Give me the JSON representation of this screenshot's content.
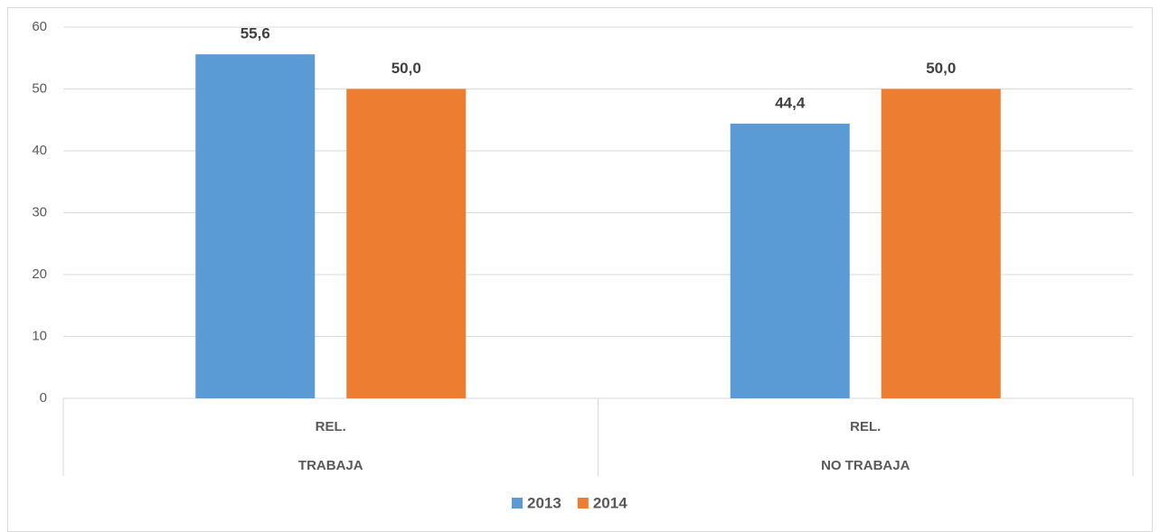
{
  "chart_data": {
    "type": "bar",
    "categories": [
      "TRABAJA",
      "NO TRABAJA"
    ],
    "subcategories": [
      "REL.",
      "REL."
    ],
    "series": [
      {
        "name": "2013",
        "color": "#5b9bd5",
        "values": [
          55.6,
          44.4
        ],
        "value_labels": [
          "55,6",
          "44,4"
        ]
      },
      {
        "name": "2014",
        "color": "#ed7d31",
        "values": [
          50.0,
          50.0
        ],
        "value_labels": [
          "50,0",
          "50,0"
        ]
      }
    ],
    "ylim": [
      0,
      60
    ],
    "yticks": [
      0,
      10,
      20,
      30,
      40,
      50,
      60
    ],
    "grid": true,
    "legend": "bottom"
  }
}
